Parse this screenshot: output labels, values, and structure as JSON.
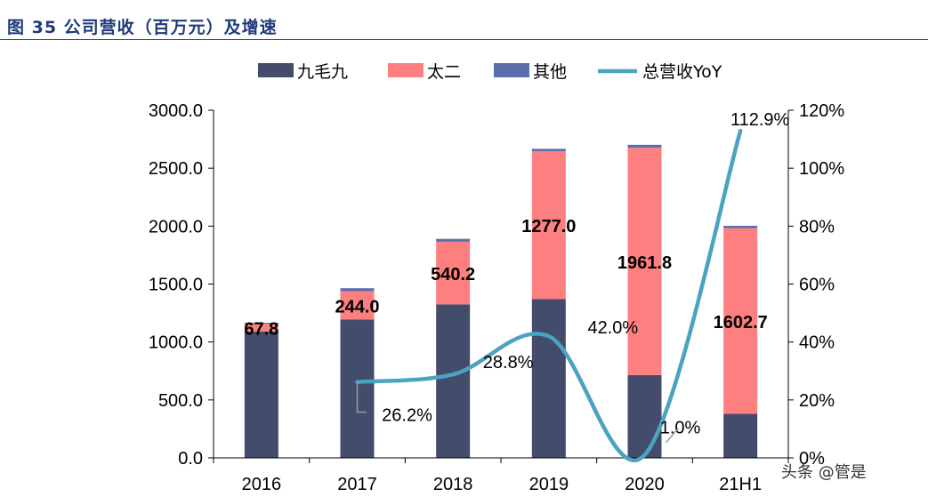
{
  "figure_title": "图 35 公司营收（百万元）及增速",
  "watermark": "头条 @管是",
  "colors": {
    "jiumaojiu": "#434c6b",
    "taier": "#fd7f7f",
    "other": "#5b6fae",
    "yoy": "#4aa3bf",
    "axis": "#000000"
  },
  "chart_data": {
    "type": "bar",
    "stacked": true,
    "categories": [
      "2016",
      "2017",
      "2018",
      "2019",
      "2020",
      "21H1"
    ],
    "series": [
      {
        "name": "九毛九",
        "values": [
          1090,
          1195,
          1325,
          1370,
          715,
          380
        ]
      },
      {
        "name": "太二",
        "values": [
          67.8,
          244.0,
          540.2,
          1277.0,
          1961.8,
          1602.7
        ]
      },
      {
        "name": "其他",
        "values": [
          8,
          25,
          25,
          20,
          25,
          20
        ]
      }
    ],
    "line_series": {
      "name": "总营收YoY",
      "axis": "right",
      "values": [
        null,
        26.2,
        28.8,
        42.0,
        1.0,
        112.9
      ]
    },
    "bar_labels": [
      "67.8",
      "244.0",
      "540.2",
      "1277.0",
      "1961.8",
      "1602.7"
    ],
    "yoy_labels": [
      "",
      "26.2%",
      "28.8%",
      "42.0%",
      "1.0%",
      "112.9%"
    ],
    "y_left": {
      "min": 0,
      "max": 3000,
      "step": 500,
      "ticks": [
        "0.0",
        "500.0",
        "1000.0",
        "1500.0",
        "2000.0",
        "2500.0",
        "3000.0"
      ]
    },
    "y_right": {
      "min": 0,
      "max": 120,
      "step": 20,
      "ticks": [
        "0%",
        "20%",
        "40%",
        "60%",
        "80%",
        "100%",
        "120%"
      ]
    },
    "legend_position": "top",
    "grid": false
  }
}
